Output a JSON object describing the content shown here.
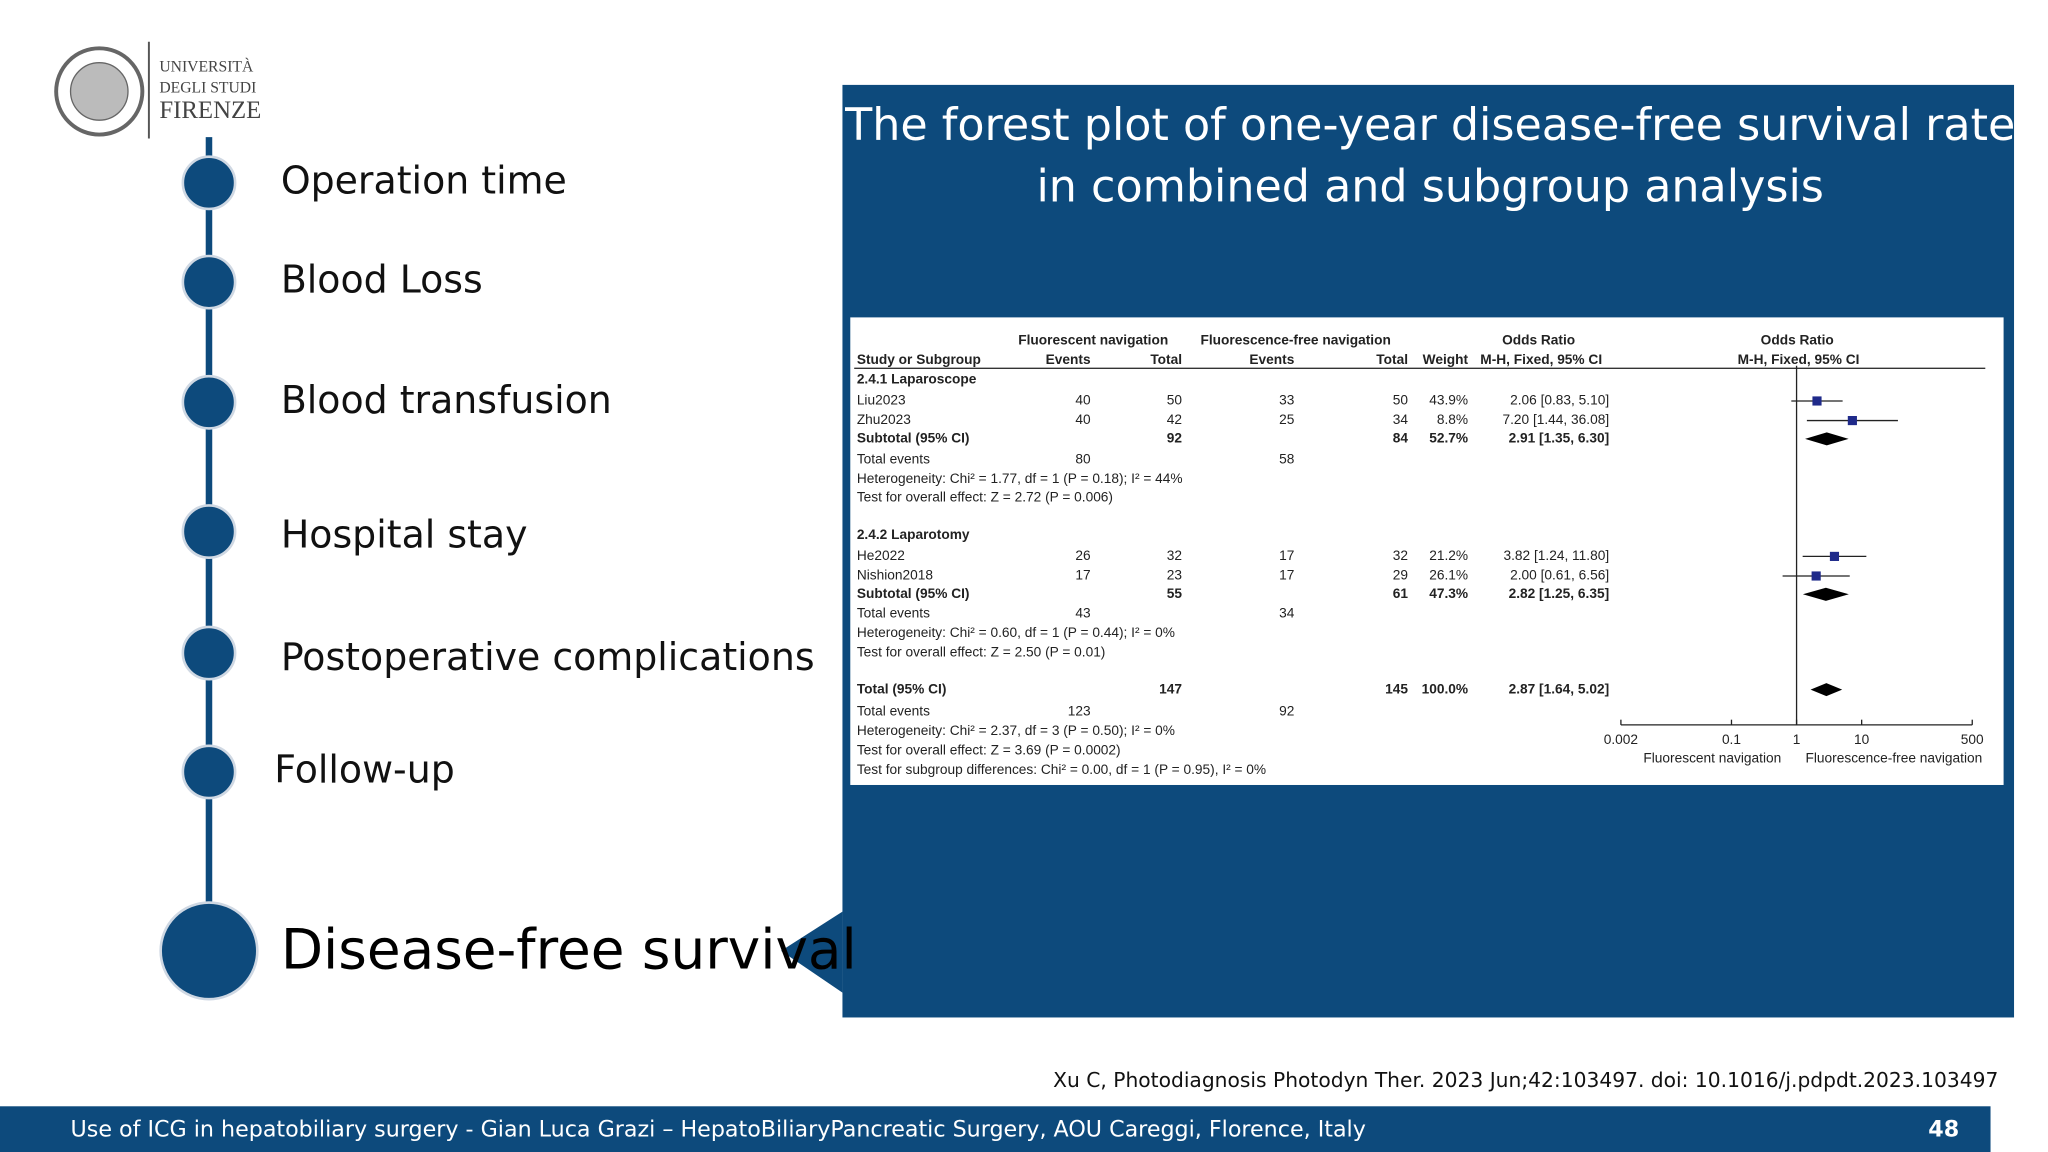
{
  "logo": {
    "lines": [
      "UNIVERSITÀ",
      "DEGLI STUDI",
      "FIRENZE"
    ]
  },
  "timeline": {
    "items": [
      "Operation time",
      "Blood Loss",
      "Blood transfusion",
      "Hospital stay",
      "Postoperative complications",
      "Follow-up"
    ],
    "current": "Disease-free survival"
  },
  "panel": {
    "title_lines": [
      "The forest plot of one-year disease-free survival rate",
      "in combined and subgroup analysis"
    ]
  },
  "forest_plot": {
    "header_groups": [
      "Fluorescent navigation",
      "Fluorescence-free navigation",
      "Odds Ratio",
      "Odds Ratio"
    ],
    "columns": [
      "Study or Subgroup",
      "Events",
      "Total",
      "Events",
      "Total",
      "Weight",
      "M-H, Fixed, 95% CI",
      "M-H, Fixed, 95% CI"
    ],
    "rows": [
      {
        "label": "2.4.1 Laparoscope",
        "bold": true
      },
      {
        "label": "Liu2023",
        "e1": "40",
        "t1": "50",
        "e2": "33",
        "t2": "50",
        "w": "43.9%",
        "ci": "2.06 [0.83, 5.10]",
        "est": [
          2.06,
          0.83,
          5.1
        ],
        "mark": "square"
      },
      {
        "label": "Zhu2023",
        "e1": "40",
        "t1": "42",
        "e2": "25",
        "t2": "34",
        "w": "8.8%",
        "ci": "7.20 [1.44, 36.08]",
        "est": [
          7.2,
          1.44,
          36.08
        ],
        "mark": "square"
      },
      {
        "label": "Subtotal (95% CI)",
        "t1": "92",
        "t2": "84",
        "w": "52.7%",
        "ci": "2.91 [1.35, 6.30]",
        "est": [
          2.91,
          1.35,
          6.3
        ],
        "mark": "diamond",
        "bold": true
      },
      {
        "label": "Total events",
        "e1": "80",
        "e2": "58"
      },
      {
        "label": "Heterogeneity: Chi² = 1.77, df = 1 (P = 0.18); I² = 44%"
      },
      {
        "label": "Test for overall effect: Z = 2.72 (P = 0.006)"
      },
      {
        "label": "2.4.2 Laparotomy",
        "bold": true
      },
      {
        "label": "He2022",
        "e1": "26",
        "t1": "32",
        "e2": "17",
        "t2": "32",
        "w": "21.2%",
        "ci": "3.82 [1.24, 11.80]",
        "est": [
          3.82,
          1.24,
          11.8
        ],
        "mark": "square"
      },
      {
        "label": "Nishion2018",
        "e1": "17",
        "t1": "23",
        "e2": "17",
        "t2": "29",
        "w": "26.1%",
        "ci": "2.00 [0.61, 6.56]",
        "est": [
          2.0,
          0.61,
          6.56
        ],
        "mark": "square"
      },
      {
        "label": "Subtotal (95% CI)",
        "t1": "55",
        "t2": "61",
        "w": "47.3%",
        "ci": "2.82 [1.25, 6.35]",
        "est": [
          2.82,
          1.25,
          6.35
        ],
        "mark": "diamond",
        "bold": true
      },
      {
        "label": "Total events",
        "e1": "43",
        "e2": "34"
      },
      {
        "label": "Heterogeneity: Chi² = 0.60, df = 1 (P = 0.44); I² = 0%"
      },
      {
        "label": "Test for overall effect: Z = 2.50 (P = 0.01)"
      },
      {
        "label": "Total (95% CI)",
        "t1": "147",
        "t2": "145",
        "w": "100.0%",
        "ci": "2.87 [1.64, 5.02]",
        "est": [
          2.87,
          1.64,
          5.02
        ],
        "mark": "diamond",
        "bold": true
      },
      {
        "label": "Total events",
        "e1": "123",
        "e2": "92"
      },
      {
        "label": "Heterogeneity: Chi² = 2.37, df = 3 (P = 0.50); I² = 0%"
      },
      {
        "label": "Test for overall effect: Z = 3.69 (P = 0.0002)"
      },
      {
        "label": "Test for subgroup differences: Chi² = 0.00, df = 1 (P = 0.95), I² = 0%"
      }
    ],
    "xscale": "log",
    "xlim": [
      0.002,
      500
    ],
    "xticks": [
      0.002,
      0.1,
      1,
      10,
      500
    ],
    "xlabels": [
      "Fluorescent navigation",
      "Fluorescence-free navigation"
    ]
  },
  "citation": "Xu C, Photodiagnosis Photodyn Ther. 2023 Jun;42:103497. doi: 10.1016/j.pdpdt.2023.103497",
  "footer": {
    "text": "Use of ICG in hepatobiliary surgery - Gian Luca Grazi – HepatoBiliaryPancreatic Surgery, AOU Careggi, Florence, Italy",
    "page": "48"
  }
}
